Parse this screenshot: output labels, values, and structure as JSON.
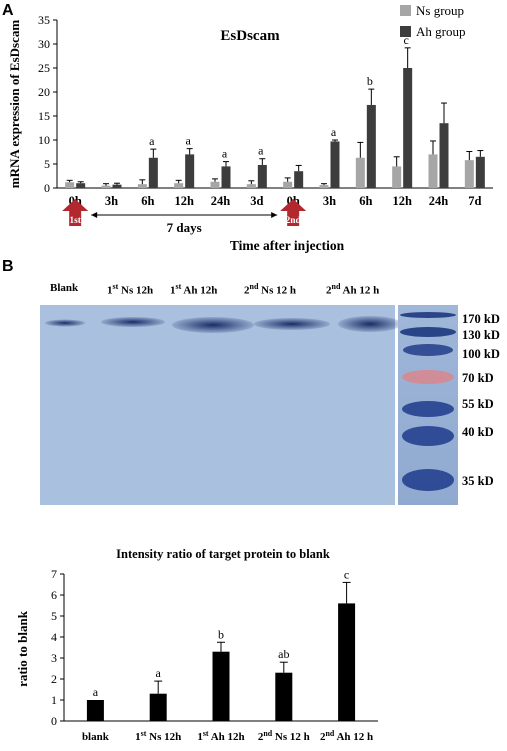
{
  "panel_a": {
    "letter": "A",
    "title": "EsDscam",
    "ylabel": "mRNA expression of EsDscam",
    "xlabel": "Time after injection",
    "annotation": "7 days",
    "arrow_labels": [
      "1st",
      "2nd"
    ],
    "legend": [
      "Ns group",
      "Ah group"
    ],
    "colors": {
      "ns": "#a6a6a6",
      "ah": "#3d3d3d",
      "arrow": "#b3272e"
    }
  },
  "panel_b": {
    "letter": "B",
    "blot_lanes": [
      {
        "base": "Blank",
        "sup": "",
        "rest": ""
      },
      {
        "base": "1",
        "sup": "st",
        "rest": " Ns 12h"
      },
      {
        "base": "1",
        "sup": "st",
        "rest": " Ah 12h"
      },
      {
        "base": "2",
        "sup": "nd",
        "rest": " Ns 12 h"
      },
      {
        "base": "2",
        "sup": "nd",
        "rest": " Ah 12 h"
      }
    ],
    "markers": [
      "170 kD",
      "130 kD",
      "100 kD",
      "70 kD",
      "55 kD",
      "40 kD",
      "35 kD"
    ],
    "colors": {
      "membrane": "#a9c0df",
      "band": "#1a2c66"
    }
  },
  "chart_data": [
    {
      "type": "bar",
      "title": "EsDscam",
      "xlabel": "Time after injection",
      "ylabel": "mRNA expression of EsDscam",
      "categories": [
        "0h",
        "3h",
        "6h",
        "12h",
        "24h",
        "3d",
        "0h",
        "3h",
        "6h",
        "12h",
        "24h",
        "7d"
      ],
      "series": [
        {
          "name": "Ns group",
          "values": [
            1.2,
            0.5,
            0.8,
            1.0,
            1.3,
            0.8,
            1.3,
            0.6,
            6.3,
            4.5,
            7.0,
            5.8
          ],
          "errors": [
            0.4,
            0.4,
            0.9,
            0.6,
            0.6,
            0.7,
            0.8,
            0.3,
            3.2,
            2.0,
            2.8,
            1.8
          ]
        },
        {
          "name": "Ah group",
          "values": [
            1.0,
            0.7,
            6.3,
            7.0,
            4.5,
            4.8,
            3.5,
            9.7,
            17.3,
            25.0,
            13.5,
            6.5
          ],
          "errors": [
            0.3,
            0.3,
            1.8,
            1.2,
            1.0,
            1.3,
            1.2,
            0.3,
            3.3,
            4.2,
            4.2,
            1.3
          ]
        }
      ],
      "significance": [
        "",
        "",
        "a",
        "a",
        "a",
        "a",
        "",
        "a",
        "b",
        "c",
        "",
        ""
      ],
      "ylim": [
        0,
        35
      ],
      "yticks": [
        0,
        5,
        10,
        15,
        20,
        25,
        30,
        35
      ]
    },
    {
      "type": "bar",
      "title": "Intensity ratio of target protein to blank",
      "xlabel": "",
      "ylabel": "ratio to blank",
      "categories": [
        {
          "base": "blank",
          "sup": "",
          "rest": ""
        },
        {
          "base": "1",
          "sup": "st",
          "rest": " Ns 12h"
        },
        {
          "base": "1",
          "sup": "st",
          "rest": " Ah 12h"
        },
        {
          "base": "2",
          "sup": "nd",
          "rest": " Ns 12 h"
        },
        {
          "base": "2",
          "sup": "nd",
          "rest": " Ah 12 h"
        }
      ],
      "values": [
        1.0,
        1.3,
        3.3,
        2.3,
        5.6
      ],
      "errors": [
        0.0,
        0.6,
        0.45,
        0.5,
        1.0
      ],
      "significance": [
        "a",
        "a",
        "b",
        "ab",
        "c"
      ],
      "ylim": [
        0,
        7
      ],
      "yticks": [
        0,
        1,
        2,
        3,
        4,
        5,
        6,
        7
      ],
      "color": "#000000"
    }
  ]
}
